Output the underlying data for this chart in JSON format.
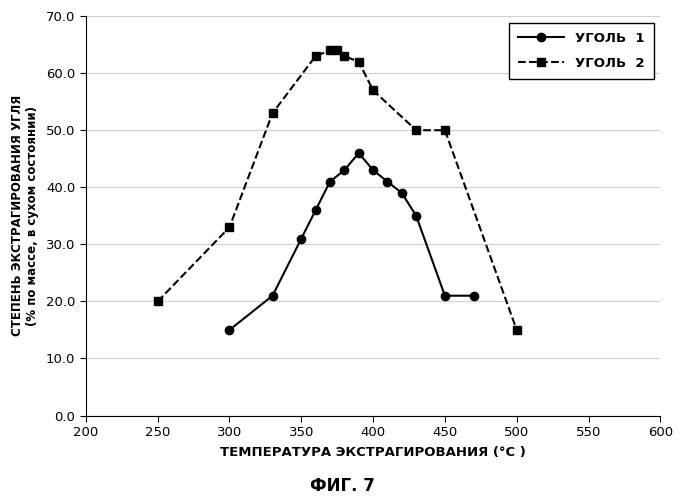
{
  "coal1_x": [
    300,
    330,
    350,
    360,
    370,
    380,
    390,
    400,
    410,
    420,
    430,
    450,
    470
  ],
  "coal1_y": [
    15,
    21,
    31,
    36,
    41,
    43,
    46,
    43,
    41,
    39,
    35,
    21,
    21
  ],
  "coal2_x": [
    250,
    300,
    330,
    360,
    370,
    375,
    380,
    390,
    400,
    430,
    450,
    500
  ],
  "coal2_y": [
    20,
    33,
    53,
    63,
    64,
    64,
    63,
    62,
    57,
    50,
    50,
    15
  ],
  "xlabel": "ТЕМПЕРАТУРА ЭКСТРАГИРОВАНИЯ (°C )",
  "ylabel_line1": "СТЕПЕНЬ ЭКСТРАГИРОВАНИЯ УГЛЯ",
  "ylabel_line2": "(% по массе, в сухом состоянии)",
  "legend1": "УГОЛЬ  1",
  "legend2": "УГОЛЬ  2",
  "caption": "ФИГ. 7",
  "xlim": [
    200,
    600
  ],
  "ylim": [
    0.0,
    70.0
  ],
  "xticks": [
    200,
    250,
    300,
    350,
    400,
    450,
    500,
    550,
    600
  ],
  "yticks": [
    0.0,
    10.0,
    20.0,
    30.0,
    40.0,
    50.0,
    60.0,
    70.0
  ],
  "background_color": "#ffffff",
  "line_color": "#000000",
  "grid_color": "#d0d0d0",
  "fig_width": 6.84,
  "fig_height": 5.0,
  "dpi": 100
}
